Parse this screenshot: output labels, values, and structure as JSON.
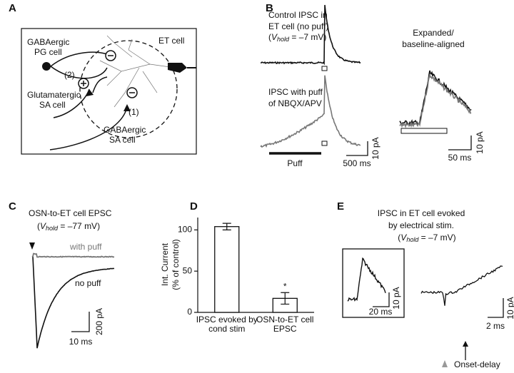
{
  "panels": {
    "A": {
      "label": "A",
      "pg_cell": [
        "GABAergic",
        "PG cell"
      ],
      "et_cell": "ET cell",
      "path2": "(2)",
      "glu_sa": [
        "Glutamatergic",
        "SA cell"
      ],
      "path1": "(1)",
      "gaba_sa": [
        "GABAergic",
        "SA cell"
      ]
    },
    "B": {
      "label": "B",
      "control": [
        "Control IPSC in",
        "ET cell (no puff)"
      ],
      "vhold": {
        "open": "(",
        "v": "V",
        "sub": "hold",
        "rest": " = –7 mV)"
      },
      "puff_trace": [
        "IPSC with puff",
        "of NBQX/APV"
      ],
      "puff": "Puff",
      "scale_y": "10 pA",
      "scale_x": "500 ms",
      "expanded": [
        "Expanded/",
        "baseline-aligned"
      ],
      "exp_scale_x": "50 ms",
      "exp_scale_y": "10 pA"
    },
    "C": {
      "label": "C",
      "title": "OSN-to-ET cell EPSC",
      "vhold": {
        "open": "(",
        "v": "V",
        "sub": "hold",
        "rest": " = –77 mV)"
      },
      "with_puff": "with puff",
      "no_puff": "no puff",
      "scale_y": "200 pA",
      "scale_x": "10 ms"
    },
    "E": {
      "label": "E",
      "title": [
        "IPSC in ET cell evoked",
        "by electrical stim."
      ],
      "vhold": {
        "open": "(",
        "v": "V",
        "sub": "hold",
        "rest": " = –7 mV)"
      },
      "inset_scale_x": "20 ms",
      "inset_scale_y": "10 pA",
      "scale_x": "2 ms",
      "scale_y": "10 pA",
      "onset": "Onset-delay"
    }
  },
  "chart_data": {
    "type": "bar",
    "label": "D",
    "y_label": [
      "Int. Current",
      "(% of control)"
    ],
    "categories": [
      "IPSC evoked by cond stim",
      "OSN-to-ET cell EPSC"
    ],
    "values": [
      104,
      17
    ],
    "errors": [
      4,
      7
    ],
    "color": "#ffffff",
    "ylim": [
      0,
      115
    ],
    "yticks": [
      0,
      50,
      100
    ],
    "annotation": "*"
  }
}
